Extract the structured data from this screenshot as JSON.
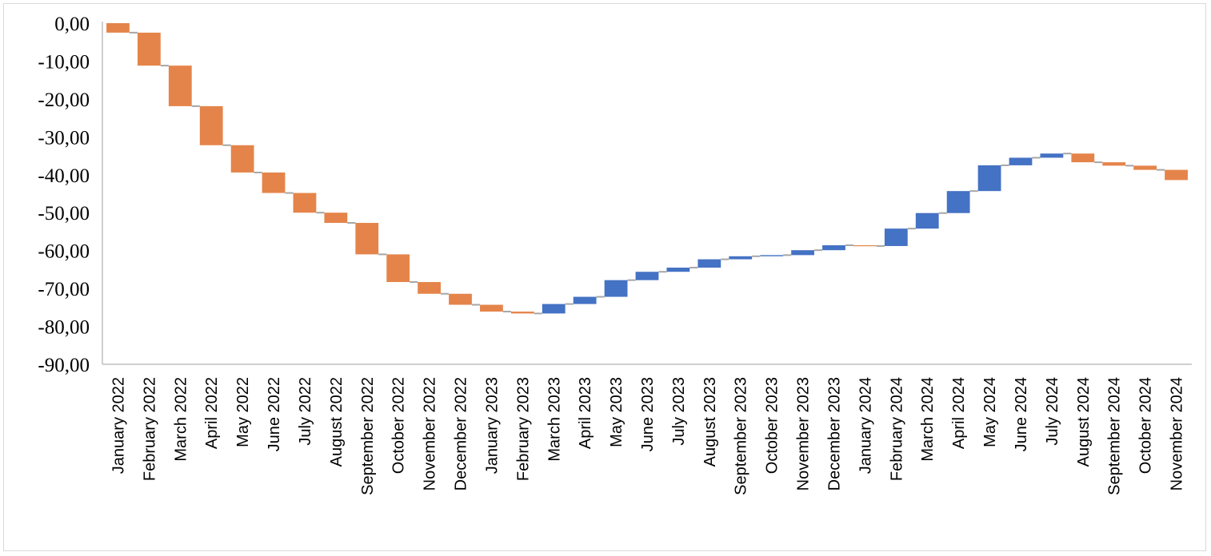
{
  "chart_data": {
    "type": "waterfall",
    "title": "",
    "xlabel": "",
    "ylabel": "",
    "ylim": [
      -90,
      0
    ],
    "yticks": [
      "0,00",
      "-10,00",
      "-20,00",
      "-30,00",
      "-40,00",
      "-50,00",
      "-60,00",
      "-70,00",
      "-80,00",
      "-90,00"
    ],
    "grid": false,
    "legend": "none",
    "colors": {
      "decrease": "#E5844A",
      "increase": "#4472C4",
      "connector": "#A6A6A6"
    },
    "categories": [
      "January 2022",
      "February 2022",
      "March 2022",
      "April 2022",
      "May 2022",
      "June 2022",
      "July 2022",
      "August 2022",
      "September 2022",
      "October 2022",
      "November 2022",
      "December 2022",
      "January 2023",
      "February 2023",
      "March 2023",
      "April 2023",
      "May 2023",
      "June 2023",
      "July 2023",
      "August 2023",
      "September 2023",
      "October 2023",
      "November 2023",
      "December 2023",
      "January 2024",
      "February 2024",
      "March 2024",
      "April 2024",
      "May 2024",
      "June 2024",
      "July 2024",
      "August 2024",
      "September 2024",
      "October 2024",
      "November 2024"
    ],
    "values": [
      -2.5,
      -8.7,
      -10.7,
      -10.3,
      -7.2,
      -5.4,
      -5.2,
      -2.7,
      -8.3,
      -7.3,
      -3.1,
      -2.9,
      -1.8,
      -0.5,
      2.5,
      1.9,
      4.4,
      2.2,
      1.1,
      2.2,
      0.8,
      0.3,
      1.3,
      1.3,
      -0.2,
      4.6,
      4.1,
      5.8,
      6.8,
      2.0,
      1.1,
      -2.3,
      -0.9,
      -1.1,
      -2.7
    ],
    "cumulative_end": [
      -2.5,
      -11.2,
      -21.9,
      -32.2,
      -39.4,
      -44.8,
      -50.0,
      -52.7,
      -61.0,
      -68.3,
      -71.4,
      -74.3,
      -76.1,
      -76.6,
      -74.1,
      -72.2,
      -67.8,
      -65.6,
      -64.5,
      -62.3,
      -61.5,
      -61.2,
      -59.9,
      -58.6,
      -58.8,
      -54.2,
      -50.1,
      -44.3,
      -37.5,
      -35.5,
      -34.4,
      -36.7,
      -37.6,
      -38.7,
      -41.4
    ]
  }
}
